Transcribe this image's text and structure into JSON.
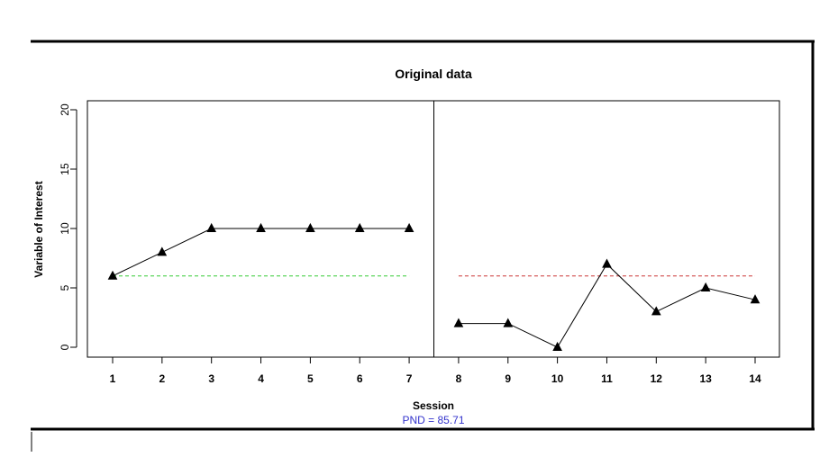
{
  "chart_data": {
    "type": "line",
    "title": "Original data",
    "xlabel": "Session",
    "ylabel": "Variable of Interest",
    "subtitle": "PND = 85.71",
    "subtitle_color": "#3333cc",
    "ylim": [
      0,
      20
    ],
    "yticks": [
      0,
      5,
      10,
      15,
      20
    ],
    "xticks": [
      1,
      2,
      3,
      4,
      5,
      6,
      7,
      8,
      9,
      10,
      11,
      12,
      13,
      14
    ],
    "phase_change_after": 7.5,
    "phases": [
      {
        "x": [
          1,
          2,
          3,
          4,
          5,
          6,
          7
        ],
        "y": [
          6,
          8,
          10,
          10,
          10,
          10,
          10
        ]
      },
      {
        "x": [
          8,
          9,
          10,
          11,
          12,
          13,
          14
        ],
        "y": [
          2,
          2,
          0,
          7,
          3,
          5,
          4
        ]
      }
    ],
    "reference_lines": [
      {
        "x_range": [
          1,
          7
        ],
        "y": 6,
        "color": "#33cc33",
        "style": "dashed"
      },
      {
        "x_range": [
          8,
          14
        ],
        "y": 6,
        "color": "#cc3333",
        "style": "dashed"
      }
    ],
    "marker": "triangle",
    "grid": false
  }
}
